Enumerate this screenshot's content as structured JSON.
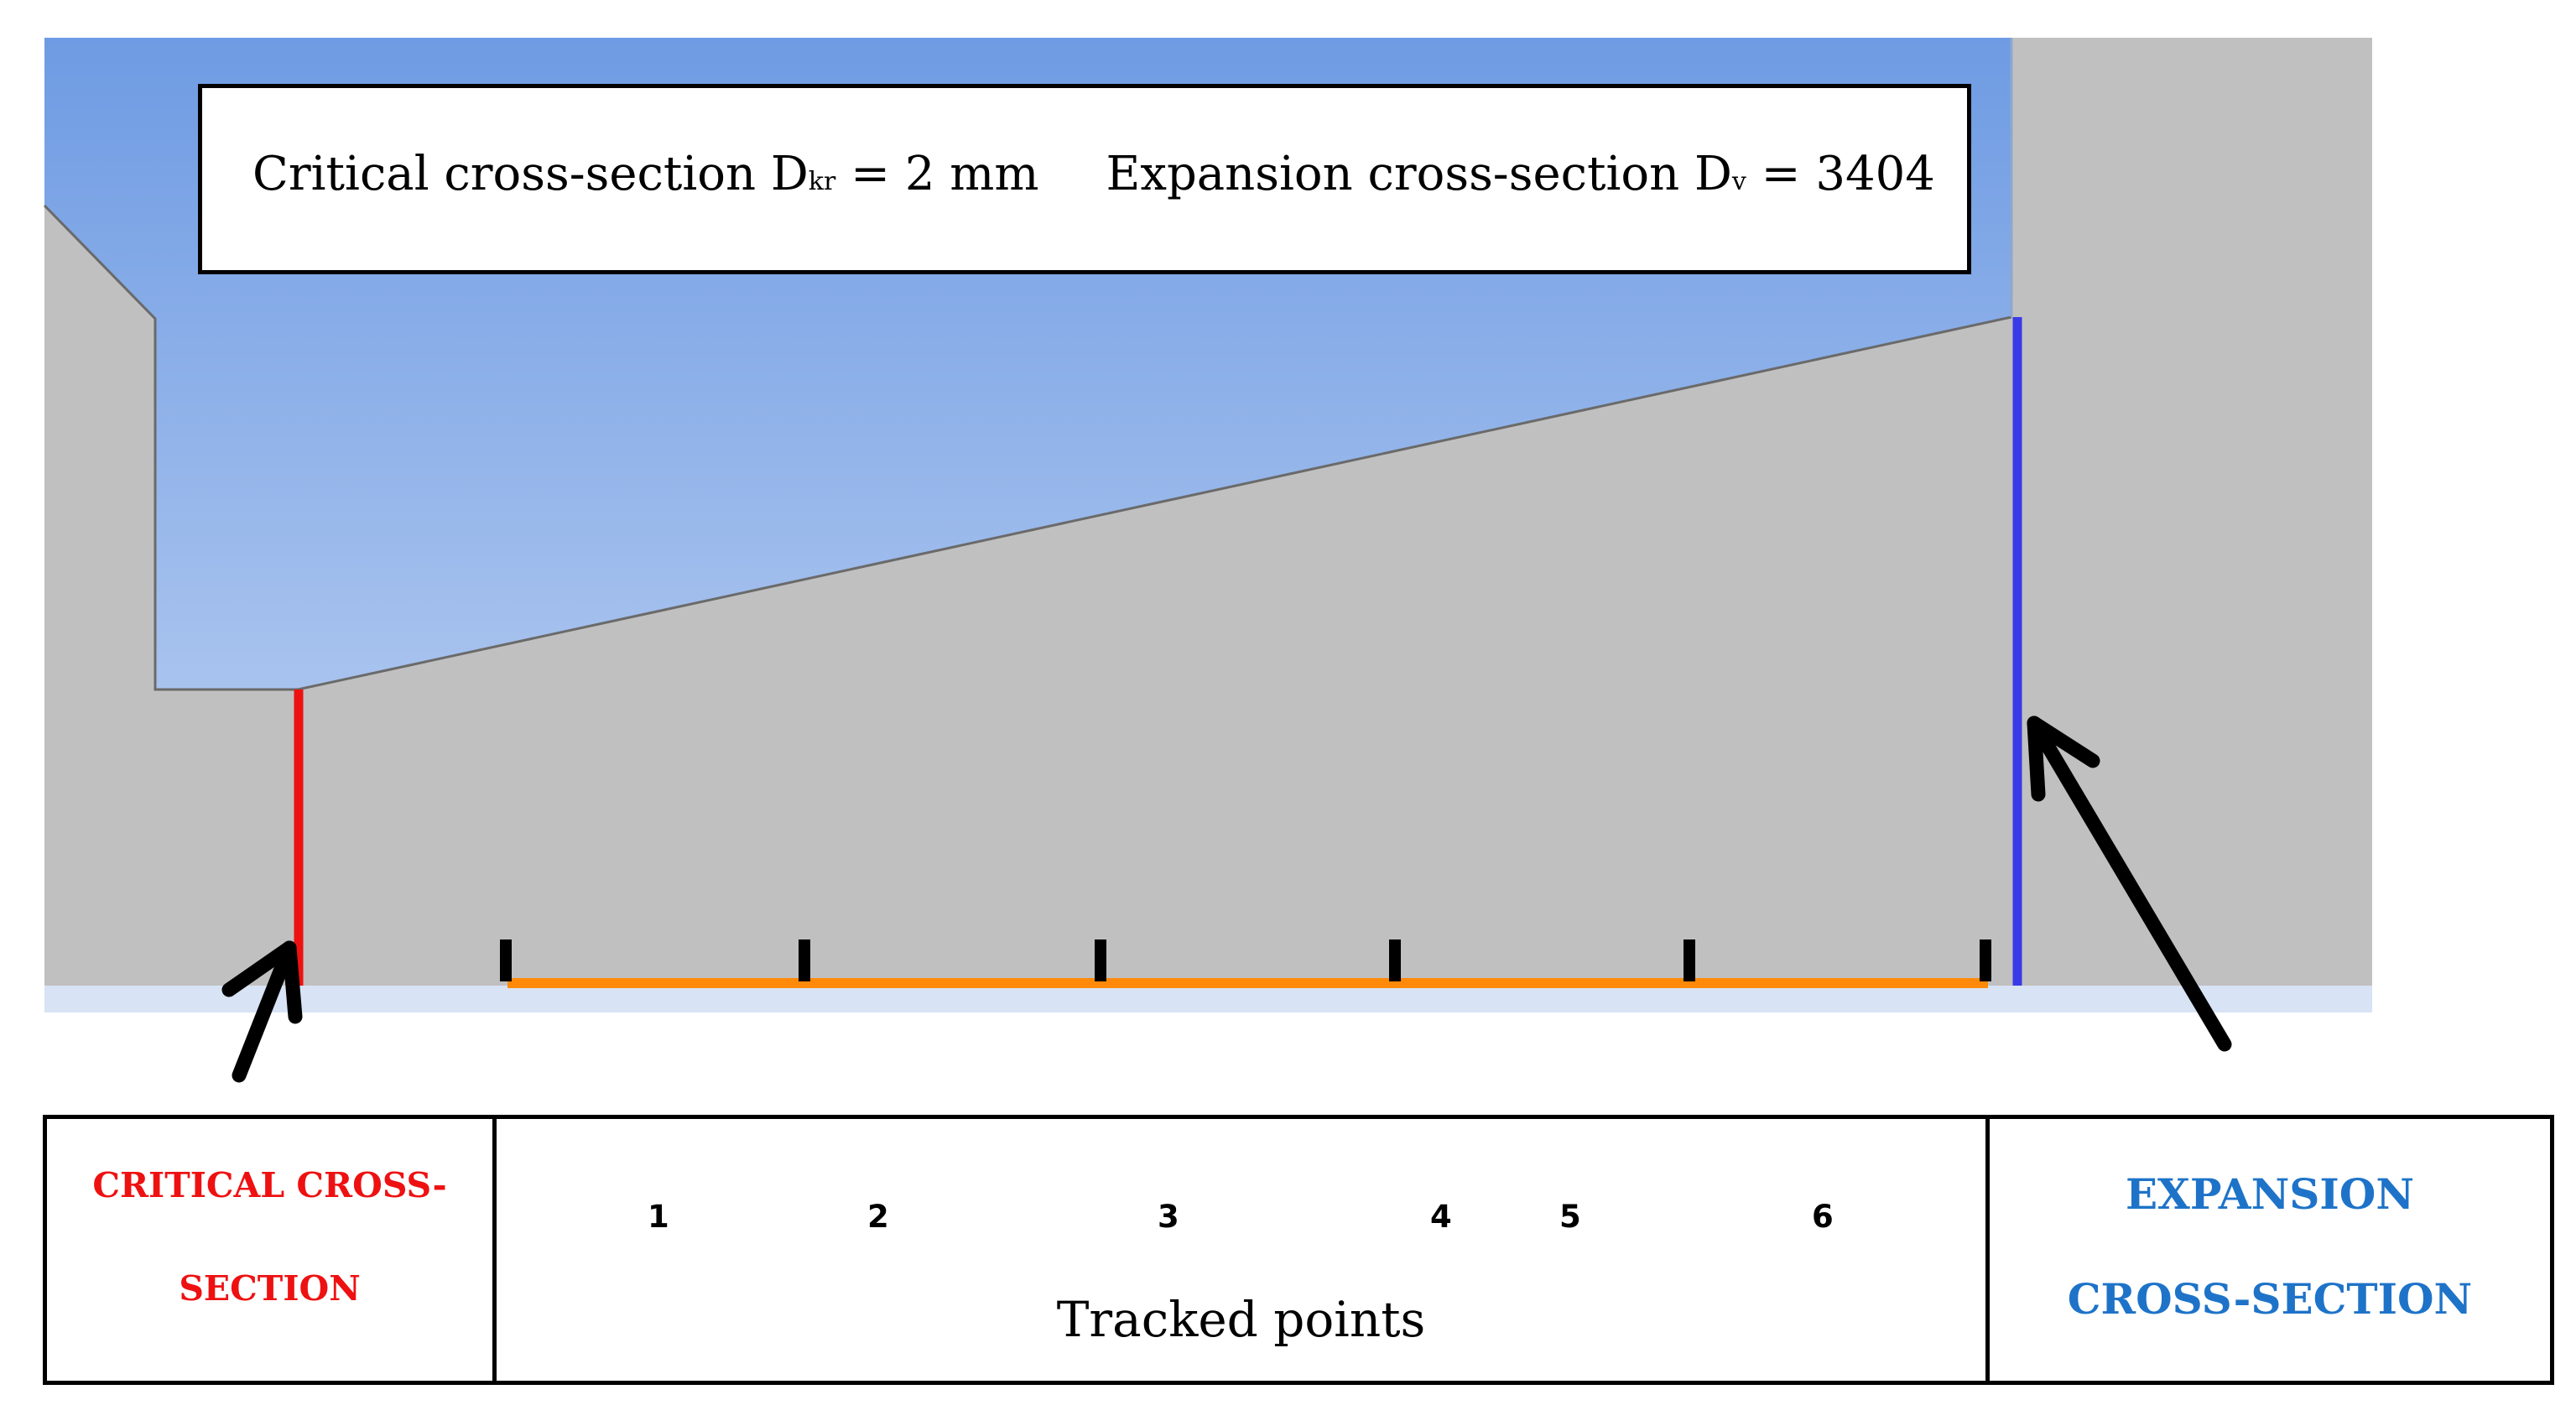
{
  "header_box": {
    "critical_prefix": "Critical cross-section D",
    "critical_sub": "kr",
    "critical_suffix": " = 2 mm",
    "expansion_prefix": "Expansion cross-section D",
    "expansion_sub": "v",
    "expansion_suffix": " = 3404"
  },
  "table": {
    "critical_line1": "CRITICAL CROSS-",
    "critical_line2": "SECTION",
    "points": [
      "1",
      "2",
      "3",
      "4",
      "5",
      "6"
    ],
    "tracked_label": "Tracked points",
    "expansion_line1": "EXPANSION",
    "expansion_line2": "CROSS-SECTION"
  },
  "colors": {
    "critical": "#ee1111",
    "expansion": "#3a3ae8",
    "tracked_line": "#ff8a0a",
    "solid": "#c0c0c0",
    "fluid_top": "#6e9be3",
    "fluid_bottom": "#c3d5f3"
  }
}
